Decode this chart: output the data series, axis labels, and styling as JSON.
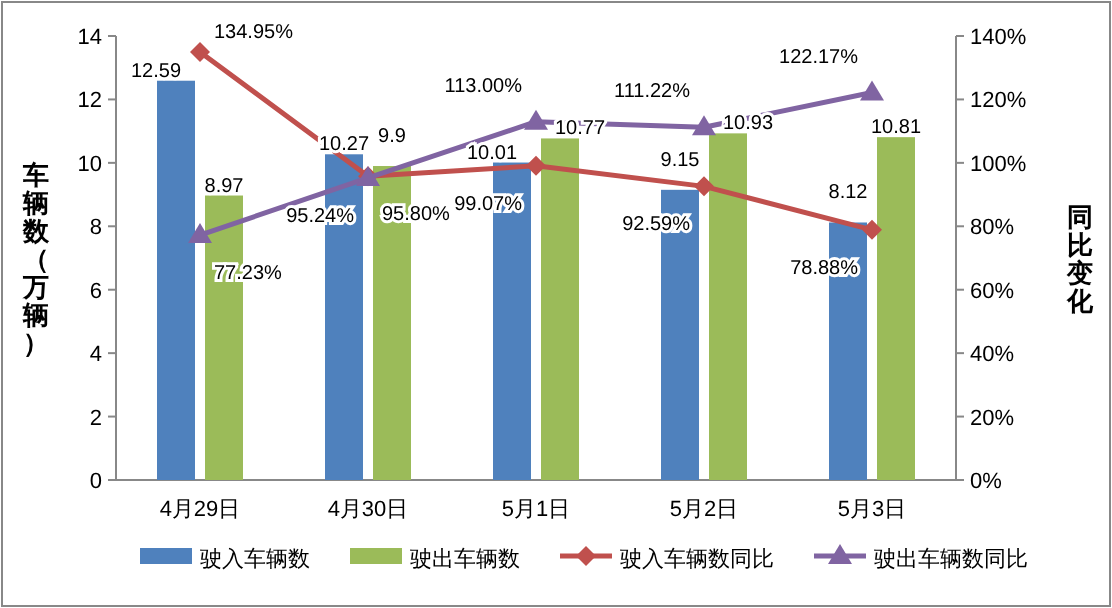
{
  "chart_data": {
    "type": "bar",
    "ylabel": "车辆数（万辆）",
    "y2label": "同比变化",
    "categories": [
      "4月29日",
      "4月30日",
      "5月1日",
      "5月2日",
      "5月3日"
    ],
    "series": [
      {
        "name": "驶入车辆数",
        "color": "#4f81bd",
        "values": [
          12.59,
          10.27,
          10.01,
          9.15,
          8.12
        ]
      },
      {
        "name": "驶出车辆数",
        "color": "#9bbb59",
        "values": [
          8.97,
          9.9,
          10.77,
          10.93,
          10.81
        ]
      },
      {
        "name": "驶入车辆数同比",
        "type": "line",
        "axis": "y2",
        "marker": "diamond",
        "color": "#c0504d",
        "values": [
          134.95,
          95.8,
          99.07,
          92.59,
          78.88
        ],
        "value_labels": [
          "134.95%",
          "95.80%",
          "99.07%",
          "92.59%",
          "78.88%"
        ]
      },
      {
        "name": "驶出车辆数同比",
        "type": "line",
        "axis": "y2",
        "marker": "triangle",
        "color": "#8064a2",
        "values": [
          77.23,
          95.24,
          113.0,
          111.22,
          122.17
        ],
        "value_labels": [
          "77.23%",
          "95.24%",
          "113.00%",
          "111.22%",
          "122.17%"
        ]
      }
    ],
    "ylim": [
      0,
      14
    ],
    "yticks": [
      0,
      2,
      4,
      6,
      8,
      10,
      12,
      14
    ],
    "y2lim": [
      0,
      140
    ],
    "y2ticks": [
      {
        "value": 0,
        "label": "0%"
      },
      {
        "value": 20,
        "label": "20%"
      },
      {
        "value": 40,
        "label": "40%"
      },
      {
        "value": 60,
        "label": "60%"
      },
      {
        "value": 80,
        "label": "80%"
      },
      {
        "value": 100,
        "label": "100%"
      },
      {
        "value": 120,
        "label": "120%"
      },
      {
        "value": 140,
        "label": "140%"
      }
    ],
    "data_labels": true,
    "legend": "bottom",
    "grid": false
  }
}
